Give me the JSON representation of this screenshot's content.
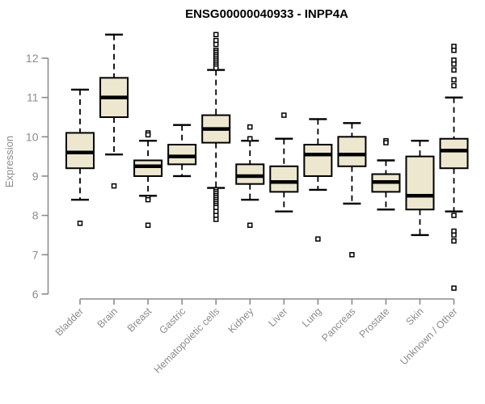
{
  "title": "ENSG00000040933 - INPP4A",
  "colors": {
    "background": "#ffffff",
    "box_fill": "#EDE7D0",
    "box_border": "#000000",
    "median": "#000000",
    "whisker": "#000000",
    "outlier": "#000000",
    "axis": "#8C8C8C",
    "tick_label": "#8C8C8C",
    "axis_label": "#8C8C8C",
    "title": "#000000"
  },
  "chart_data": {
    "type": "boxplot",
    "title": "ENSG00000040933 - INPP4A",
    "xlabel": "",
    "ylabel": "Expression",
    "yticks": [
      6,
      7,
      8,
      9,
      10,
      11,
      12
    ],
    "ylim": [
      5.8,
      12.8
    ],
    "grid": false,
    "legend": "none",
    "categories": [
      "Bladder",
      "Brain",
      "Breast",
      "Gastric",
      "Hematopoietic cells",
      "Kidney",
      "Liver",
      "Lung",
      "Pancreas",
      "Prostate",
      "Skin",
      "Unknown / Other"
    ],
    "series": [
      {
        "category": "Bladder",
        "whisker_low": 8.4,
        "q1": 9.2,
        "median": 9.6,
        "q3": 10.1,
        "whisker_high": 11.2,
        "outliers": [
          7.8
        ]
      },
      {
        "category": "Brain",
        "whisker_low": 9.55,
        "q1": 10.5,
        "median": 11.0,
        "q3": 11.5,
        "whisker_high": 12.6,
        "outliers": [
          8.75
        ]
      },
      {
        "category": "Breast",
        "whisker_low": 8.5,
        "q1": 9.0,
        "median": 9.25,
        "q3": 9.4,
        "whisker_high": 9.9,
        "outliers": [
          10.1,
          10.05,
          8.45,
          8.4,
          7.75
        ]
      },
      {
        "category": "Gastric",
        "whisker_low": 9.0,
        "q1": 9.3,
        "median": 9.5,
        "q3": 9.8,
        "whisker_high": 10.3,
        "outliers": []
      },
      {
        "category": "Hematopoietic cells",
        "whisker_low": 8.7,
        "q1": 9.85,
        "median": 10.2,
        "q3": 10.55,
        "whisker_high": 11.7,
        "outliers": [
          12.6,
          12.45,
          12.35,
          12.2,
          12.15,
          12.1,
          12.05,
          12.0,
          11.95,
          11.9,
          11.85,
          11.8,
          11.75,
          8.65,
          8.6,
          8.55,
          8.5,
          8.45,
          8.4,
          8.35,
          8.3,
          8.25,
          8.2,
          8.1,
          8.0,
          7.9
        ]
      },
      {
        "category": "Kidney",
        "whisker_low": 8.4,
        "q1": 8.8,
        "median": 9.0,
        "q3": 9.3,
        "whisker_high": 9.9,
        "outliers": [
          10.25,
          9.95,
          7.75
        ]
      },
      {
        "category": "Liver",
        "whisker_low": 8.1,
        "q1": 8.6,
        "median": 8.85,
        "q3": 9.25,
        "whisker_high": 9.95,
        "outliers": [
          10.55
        ]
      },
      {
        "category": "Lung",
        "whisker_low": 8.65,
        "q1": 9.0,
        "median": 9.55,
        "q3": 9.8,
        "whisker_high": 10.45,
        "outliers": [
          7.4
        ]
      },
      {
        "category": "Pancreas",
        "whisker_low": 8.3,
        "q1": 9.25,
        "median": 9.55,
        "q3": 10.0,
        "whisker_high": 10.35,
        "outliers": [
          7.0
        ]
      },
      {
        "category": "Prostate",
        "whisker_low": 8.15,
        "q1": 8.6,
        "median": 8.85,
        "q3": 9.05,
        "whisker_high": 9.4,
        "outliers": [
          9.9,
          9.85
        ]
      },
      {
        "category": "Skin",
        "whisker_low": 7.5,
        "q1": 8.15,
        "median": 8.5,
        "q3": 9.5,
        "whisker_high": 9.9,
        "outliers": []
      },
      {
        "category": "Unknown / Other",
        "whisker_low": 8.1,
        "q1": 9.2,
        "median": 9.65,
        "q3": 9.95,
        "whisker_high": 11.0,
        "outliers": [
          12.3,
          12.2,
          11.95,
          11.85,
          11.7,
          11.45,
          11.3,
          8.0,
          7.6,
          7.5,
          7.35,
          6.15
        ]
      }
    ]
  }
}
